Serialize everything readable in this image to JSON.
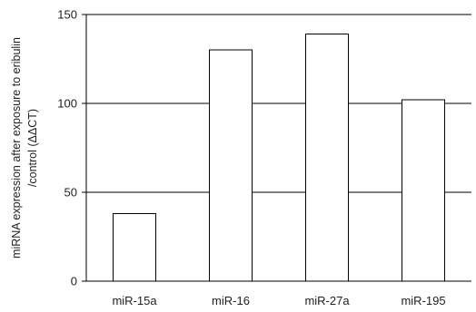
{
  "chart_data": {
    "type": "bar",
    "categories": [
      "miR-15a",
      "miR-16",
      "miR-27a",
      "miR-195"
    ],
    "values": [
      38,
      130,
      139,
      102
    ],
    "title": "",
    "xlabel": "",
    "ylabel_line1": "miRNA expression after exposure to eribulin",
    "ylabel_line2": "/control (ΔΔCT)",
    "ylim": [
      0,
      150
    ],
    "yticks": [
      0,
      50,
      100,
      150
    ],
    "grid": true,
    "bar_fill": "#ffffff",
    "bar_stroke": "#000000"
  }
}
